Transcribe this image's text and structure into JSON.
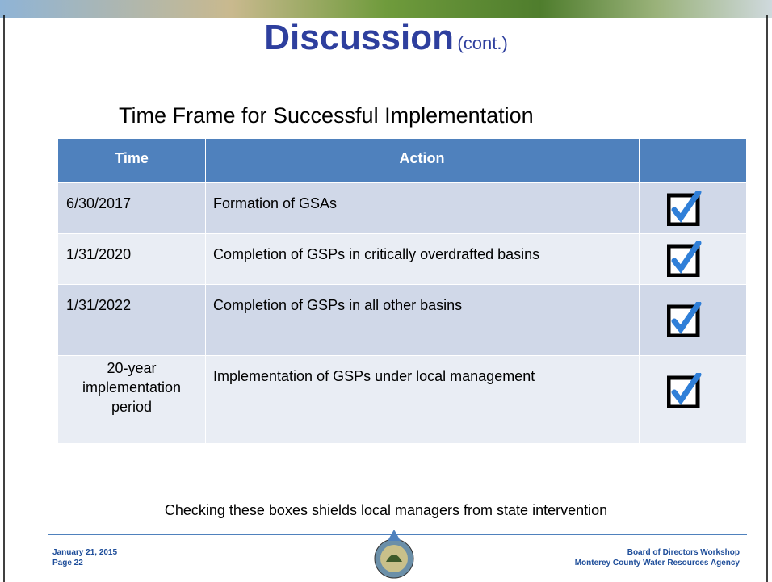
{
  "header": {
    "title": "Discussion",
    "title_suffix": "(cont.)"
  },
  "subtitle": "Time Frame for Successful Implementation",
  "table": {
    "columns": [
      "Time",
      "Action"
    ],
    "rows": [
      [
        "6/30/2017",
        "Formation of GSAs"
      ],
      [
        "1/31/2020",
        "Completion of GSPs in critically overdrafted basins"
      ],
      [
        "1/31/2022",
        "Completion of GSPs in all other basins"
      ],
      [
        "20-year implementation period",
        "Implementation of GSPs under local management"
      ]
    ]
  },
  "footnote": "Checking these boxes shields local managers from state intervention",
  "footer": {
    "left": [
      "January 21, 2015",
      "Page 22"
    ],
    "right": [
      "Board of Directors Workshop",
      "Monterey County Water Resources Agency"
    ]
  }
}
